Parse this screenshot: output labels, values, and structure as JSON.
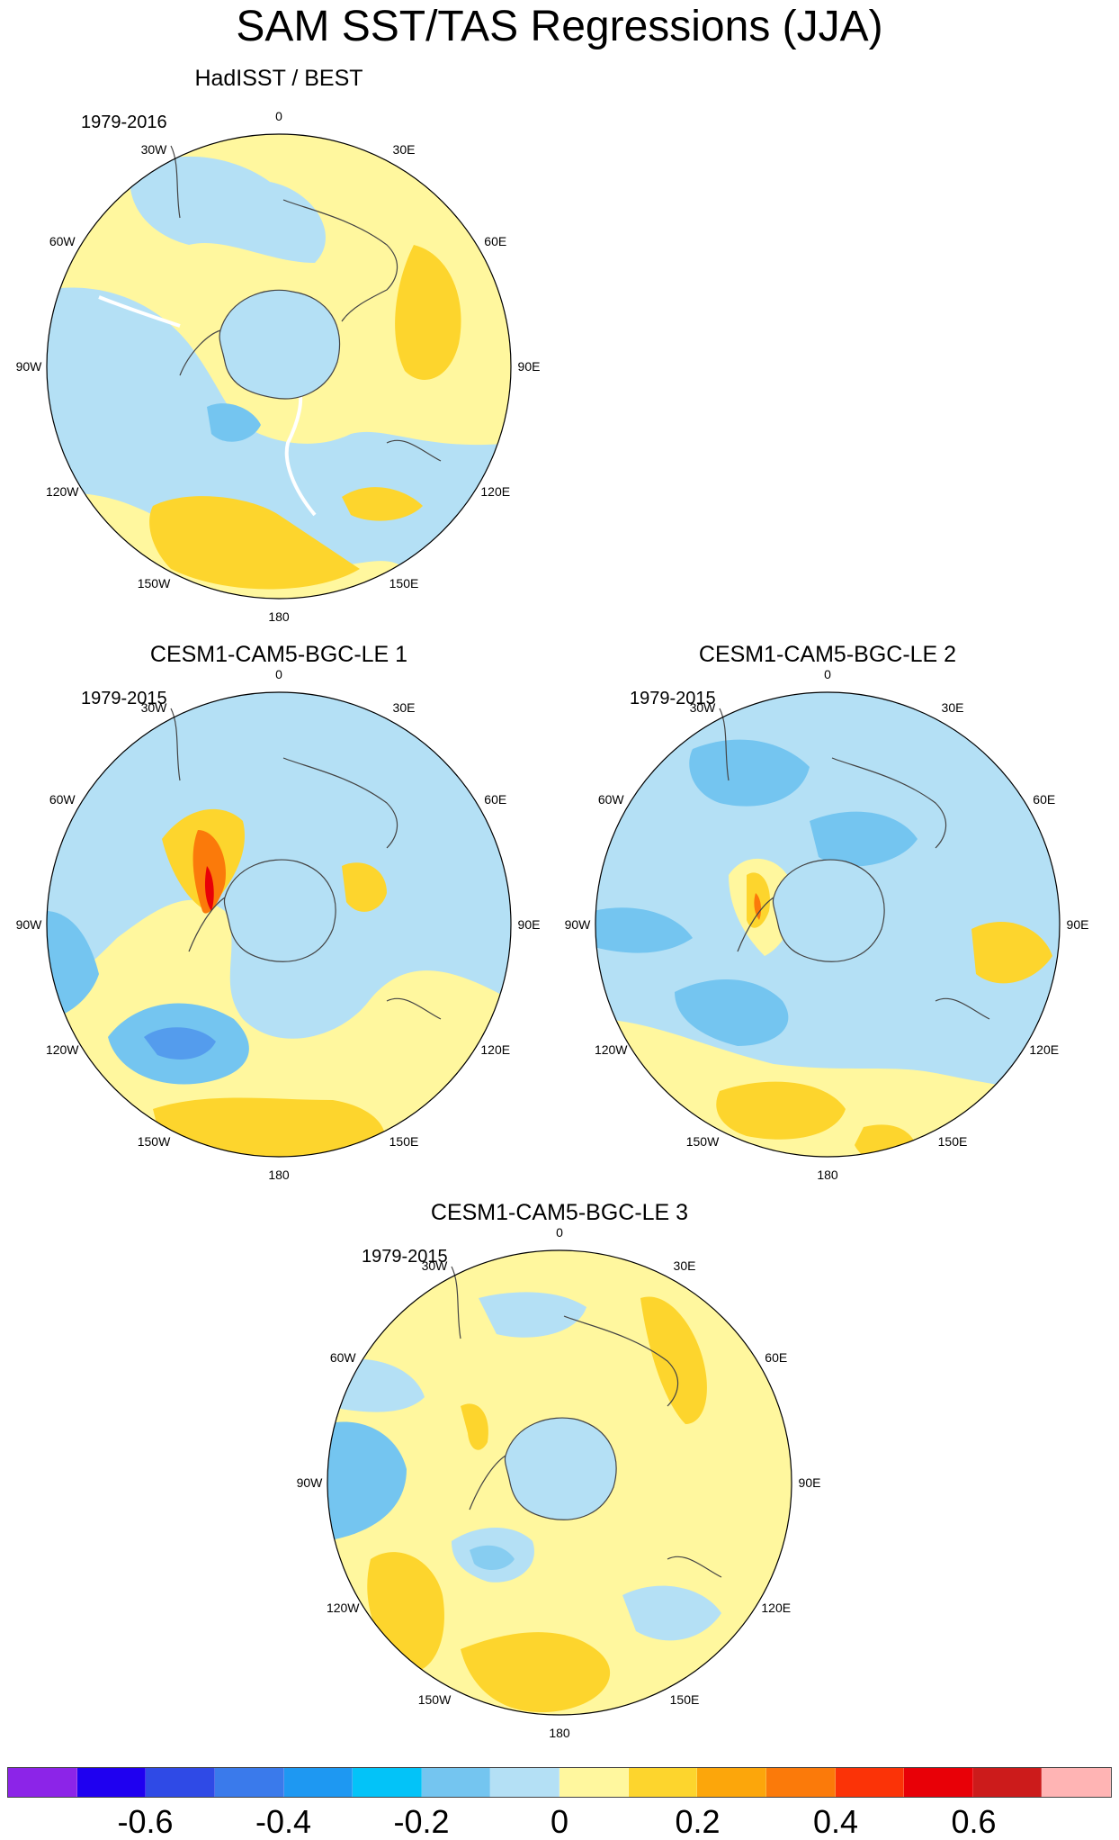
{
  "title": "SAM SST/TAS Regressions (JJA)",
  "panels": [
    {
      "title": "HadISST / BEST",
      "period": "1979-2016"
    },
    {
      "title": "CESM1-CAM5-BGC-LE 1",
      "period": "1979-2015"
    },
    {
      "title": "CESM1-CAM5-BGC-LE 2",
      "period": "1979-2015"
    },
    {
      "title": "CESM1-CAM5-BGC-LE 3",
      "period": "1979-2015"
    }
  ],
  "lon_labels": [
    "0",
    "30E",
    "60E",
    "90E",
    "120E",
    "150E",
    "180",
    "150W",
    "120W",
    "90W",
    "60W",
    "30W"
  ],
  "colorbar": {
    "colors": [
      "#8c24e8",
      "#1f00f0",
      "#2f4ae6",
      "#3a7aeb",
      "#1e98f2",
      "#03c3f8",
      "#74c5f0",
      "#b4e0f5",
      "#fff79e",
      "#fdd52d",
      "#fca60b",
      "#fb7a0a",
      "#fb3307",
      "#e80007",
      "#cc1b1b",
      "#ffb4b4"
    ],
    "labels": [
      "-0.6",
      "-0.4",
      "-0.2",
      "0",
      "0.2",
      "0.4",
      "0.6"
    ]
  }
}
